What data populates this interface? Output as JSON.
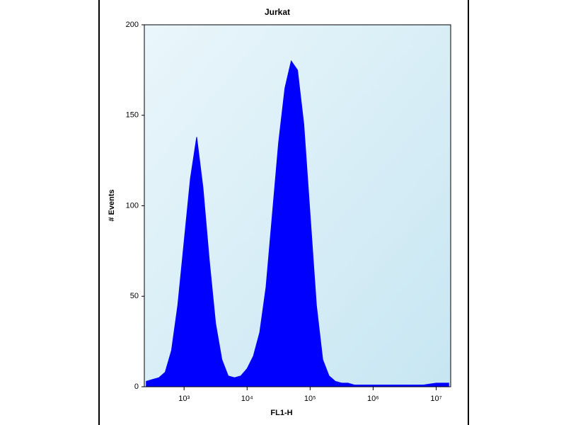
{
  "chart_data": {
    "type": "area",
    "title": "Jurkat",
    "xlabel": "FL1-H",
    "ylabel": "# Events",
    "xscale": "log",
    "color": "#0000ff",
    "x": [
      251,
      316,
      398,
      501,
      631,
      794,
      1000,
      1259,
      1585,
      1995,
      2512,
      3162,
      3981,
      5012,
      6310,
      7943,
      10000,
      12589,
      15849,
      19953,
      25119,
      31623,
      39811,
      50119,
      63096,
      79433,
      100000,
      125893,
      158489,
      199526,
      251189,
      316228,
      398107,
      501187,
      630957,
      794328,
      1000000,
      1584893,
      2511886,
      3981072,
      6309573,
      10000000,
      15848932
    ],
    "values": [
      3,
      4,
      5,
      8,
      20,
      45,
      80,
      115,
      138,
      110,
      70,
      35,
      15,
      6,
      5,
      6,
      10,
      17,
      30,
      55,
      95,
      135,
      165,
      180,
      175,
      145,
      95,
      45,
      15,
      6,
      3,
      2,
      2,
      1,
      1,
      1,
      1,
      1,
      1,
      1,
      1,
      2,
      2
    ],
    "xlim": [
      234,
      17000000
    ],
    "ylim": [
      0,
      200
    ],
    "xticks": [
      {
        "value": 1000,
        "label": "10³"
      },
      {
        "value": 10000,
        "label": "10⁴"
      },
      {
        "value": 100000,
        "label": "10⁵"
      },
      {
        "value": 1000000,
        "label": "10⁶"
      },
      {
        "value": 10000000,
        "label": "10⁷"
      }
    ],
    "yticks": [
      0,
      50,
      100,
      150,
      200
    ]
  }
}
